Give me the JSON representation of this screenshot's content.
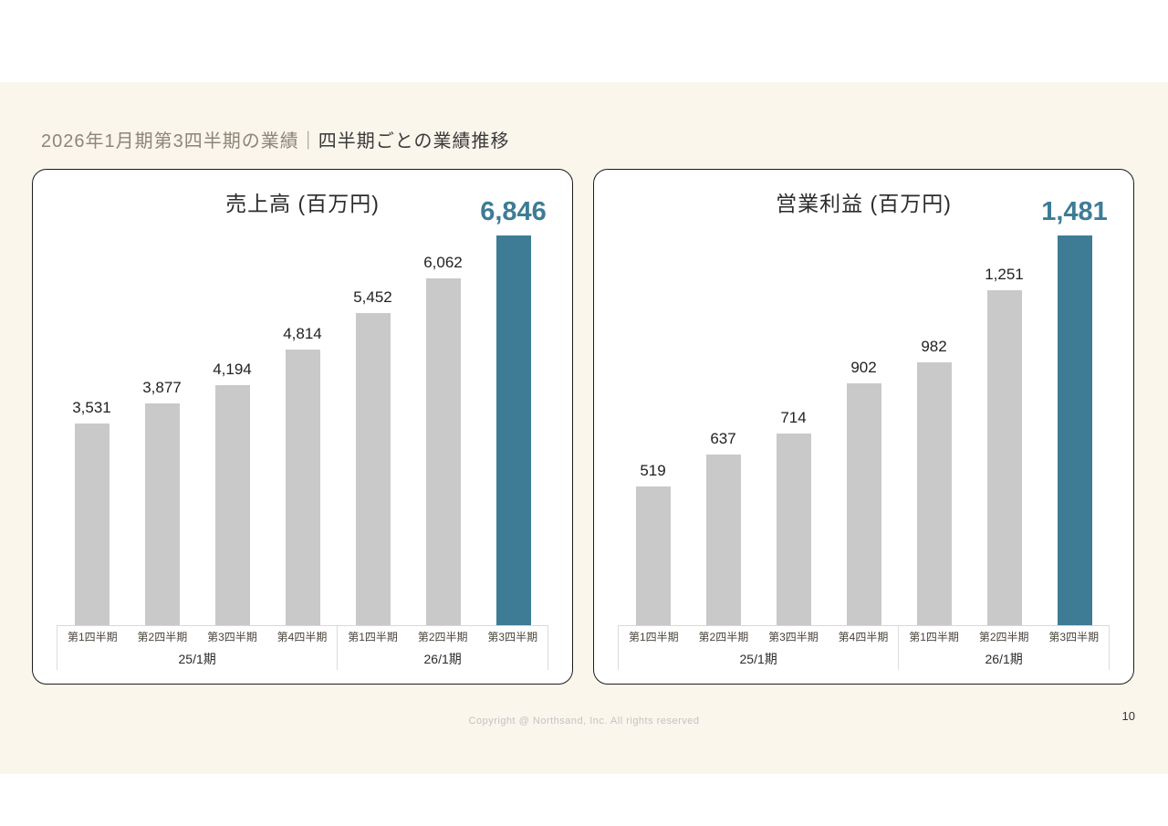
{
  "page": {
    "title_prefix": "2026年1月期第3四半期の業績",
    "title_separator": "｜",
    "title_main": "四半期ごとの業績推移",
    "footer_copyright": "Copyright @ Northsand, Inc. All rights reserved",
    "page_number": "10"
  },
  "colors": {
    "background_cream": "#faf6ec",
    "bar_default": "#c9c9c9",
    "bar_highlight": "#3e7c96",
    "highlight_text": "#3e7c96"
  },
  "chart_data": [
    {
      "type": "bar",
      "title": "売上高 (百万円)",
      "categories": [
        "第1四半期",
        "第2四半期",
        "第3四半期",
        "第4四半期",
        "第1四半期",
        "第2四半期",
        "第3四半期"
      ],
      "values": [
        3531,
        3877,
        4194,
        4814,
        5452,
        6062,
        6846
      ],
      "value_labels": [
        "3,531",
        "3,877",
        "4,194",
        "4,814",
        "5,452",
        "6,062",
        "6,846"
      ],
      "highlight_index": 6,
      "groups": [
        {
          "label": "25/1期",
          "span": 4
        },
        {
          "label": "26/1期",
          "span": 3
        }
      ],
      "ylim": [
        0,
        7500
      ],
      "ylabel": "百万円",
      "legend": "none",
      "grid": "off"
    },
    {
      "type": "bar",
      "title": "営業利益 (百万円)",
      "categories": [
        "第1四半期",
        "第2四半期",
        "第3四半期",
        "第4四半期",
        "第1四半期",
        "第2四半期",
        "第3四半期"
      ],
      "values": [
        519,
        637,
        714,
        902,
        982,
        1251,
        1481
      ],
      "value_labels": [
        "519",
        "637",
        "714",
        "902",
        "982",
        "1,251",
        "1,481"
      ],
      "highlight_index": 6,
      "groups": [
        {
          "label": "25/1期",
          "span": 4
        },
        {
          "label": "26/1期",
          "span": 3
        }
      ],
      "ylim": [
        0,
        1600
      ],
      "ylabel": "百万円",
      "legend": "none",
      "grid": "off"
    }
  ]
}
